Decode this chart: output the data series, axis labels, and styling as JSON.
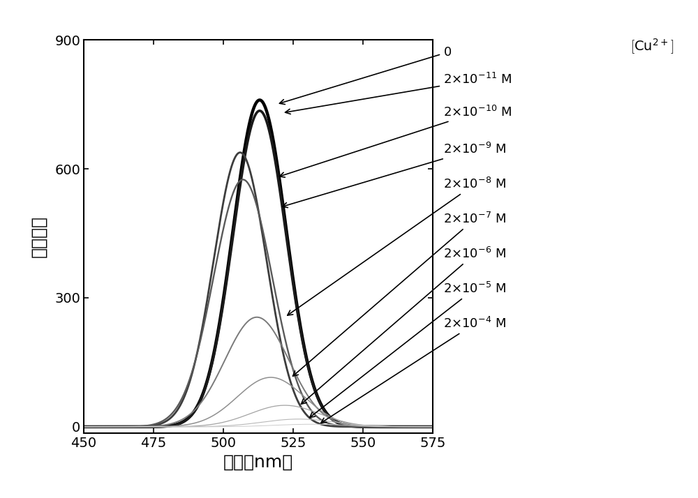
{
  "xlabel": "波长（nm）",
  "ylabel": "荧光强度",
  "xlim": [
    450,
    575
  ],
  "ylim": [
    -15,
    900
  ],
  "xticks": [
    450,
    475,
    500,
    525,
    550,
    575
  ],
  "yticks": [
    0,
    300,
    600,
    900
  ],
  "peak_heights": [
    760,
    735,
    638,
    575,
    255,
    115,
    50,
    18,
    6
  ],
  "peak_positions": [
    513,
    513,
    506,
    507,
    512,
    517,
    522,
    527,
    532
  ],
  "peak_widths": [
    9.5,
    9.5,
    9.5,
    10.5,
    11.5,
    12.0,
    12.5,
    13.0,
    13.5
  ],
  "line_colors": [
    "#000000",
    "#1a1a1a",
    "#3d3d3d",
    "#595959",
    "#7a7a7a",
    "#8f8f8f",
    "#a3a3a3",
    "#b8b8b8",
    "#cccccc"
  ],
  "line_widths": [
    3.2,
    2.6,
    2.0,
    1.7,
    1.4,
    1.1,
    0.9,
    0.8,
    0.7
  ],
  "background_color": "#ffffff"
}
